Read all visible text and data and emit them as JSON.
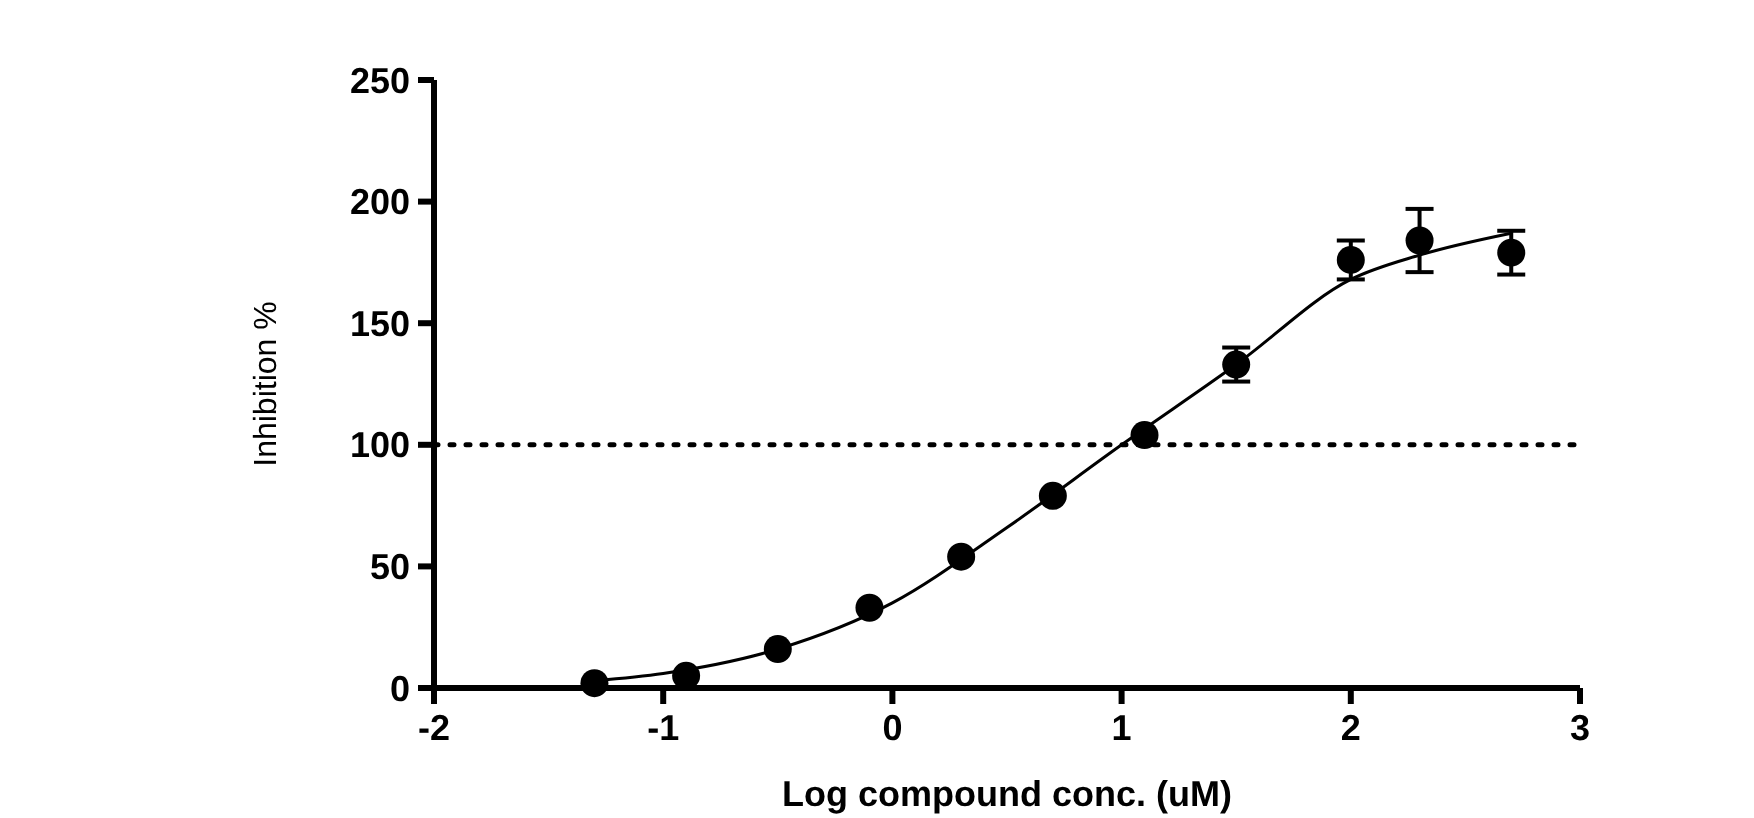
{
  "chart_data": {
    "type": "scatter",
    "xlabel": "Log compound conc. (uM)",
    "ylabel": "Inhibition %",
    "xlim": [
      -2,
      3
    ],
    "xticks": [
      -2,
      -1,
      0,
      1,
      2,
      3
    ],
    "ylim": [
      0,
      250
    ],
    "yticks": [
      0,
      50,
      100,
      150,
      200,
      250
    ],
    "marker": "circle",
    "series": [
      {
        "color": "#000000",
        "x": [
          -1.3,
          -0.9,
          -0.5,
          -0.1,
          0.3,
          0.7,
          1.1,
          1.5,
          2.0,
          2.3,
          2.7
        ],
        "values": [
          2,
          5,
          16,
          33,
          54,
          79,
          104,
          133,
          176,
          184,
          179
        ],
        "errors": [
          null,
          null,
          null,
          null,
          null,
          null,
          null,
          7,
          8,
          13,
          9
        ]
      },
      {
        "type": "line",
        "marker": "none",
        "color": "#000000",
        "x": [
          -1.3,
          -1.0,
          -0.5,
          0,
          0.5,
          1.0,
          1.5,
          2.0,
          2.3,
          2.7
        ],
        "values": [
          3,
          6,
          16,
          35,
          66,
          100,
          133,
          168,
          178,
          187
        ]
      }
    ],
    "ref_lines": [
      {
        "axis": "y",
        "value": 100,
        "line_style": "dotted",
        "color": "#000000"
      }
    ]
  }
}
